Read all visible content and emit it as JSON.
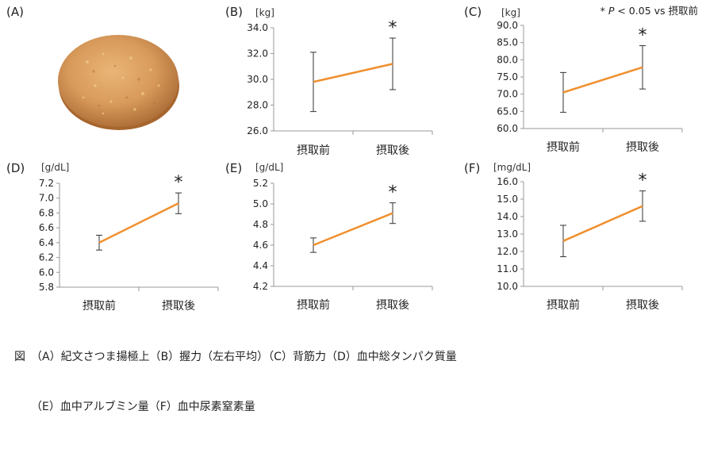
{
  "panel_letters": [
    "(A)",
    "(B)",
    "(C)",
    "(D)",
    "(E)",
    "(F)"
  ],
  "significance_note": {
    "star": "*",
    "p_symbol": "P",
    "text": " < 0.05 vs 摂取前"
  },
  "caption": {
    "line1": "図　（A）紀文さつま揚極上（B）握力（左右平均）（C）背筋力（D）血中総タンパク質量",
    "line2": "　　（E）血中アルブミン量（F）血中尿素窒素量"
  },
  "colors": {
    "line": "#f0902e",
    "axis": "#999999",
    "errorbar": "#333333",
    "cookie": "#d89a5a"
  },
  "chart_data": [
    {
      "id": "B",
      "type": "line",
      "unit": "[kg]",
      "categories": [
        "摂取前",
        "摂取後"
      ],
      "values": [
        29.8,
        31.2
      ],
      "errors": [
        2.3,
        2.0
      ],
      "ylim": [
        26.0,
        34.0
      ],
      "yticks": [
        "26.0",
        "28.0",
        "30.0",
        "32.0",
        "34.0"
      ],
      "star": "*"
    },
    {
      "id": "C",
      "type": "line",
      "unit": "[kg]",
      "categories": [
        "摂取前",
        "摂取後"
      ],
      "values": [
        70.5,
        77.8
      ],
      "errors": [
        5.8,
        6.3
      ],
      "ylim": [
        60.0,
        90.0
      ],
      "yticks": [
        "60.0",
        "65.0",
        "70.0",
        "75.0",
        "80.0",
        "85.0",
        "90.0"
      ],
      "star": "*"
    },
    {
      "id": "D",
      "type": "line",
      "unit": "[g/dL]",
      "categories": [
        "摂取前",
        "摂取後"
      ],
      "values": [
        6.4,
        6.93
      ],
      "errors": [
        0.1,
        0.14
      ],
      "ylim": [
        5.8,
        7.2
      ],
      "yticks": [
        "5.8",
        "6.0",
        "6.2",
        "6.4",
        "6.6",
        "6.8",
        "7.0",
        "7.2"
      ],
      "star": "*"
    },
    {
      "id": "E",
      "type": "line",
      "unit": "[g/dL]",
      "categories": [
        "摂取前",
        "摂取後"
      ],
      "values": [
        4.6,
        4.91
      ],
      "errors": [
        0.07,
        0.1
      ],
      "ylim": [
        4.2,
        5.2
      ],
      "yticks": [
        "4.2",
        "4.4",
        "4.6",
        "4.8",
        "5.0",
        "5.2"
      ],
      "star": "*"
    },
    {
      "id": "F",
      "type": "line",
      "unit": "[mg/dL]",
      "categories": [
        "摂取前",
        "摂取後"
      ],
      "values": [
        12.6,
        14.6
      ],
      "errors": [
        0.9,
        0.87
      ],
      "ylim": [
        10.0,
        16.0
      ],
      "yticks": [
        "10.0",
        "11.0",
        "12.0",
        "13.0",
        "14.0",
        "15.0",
        "16.0"
      ],
      "star": "*"
    }
  ]
}
